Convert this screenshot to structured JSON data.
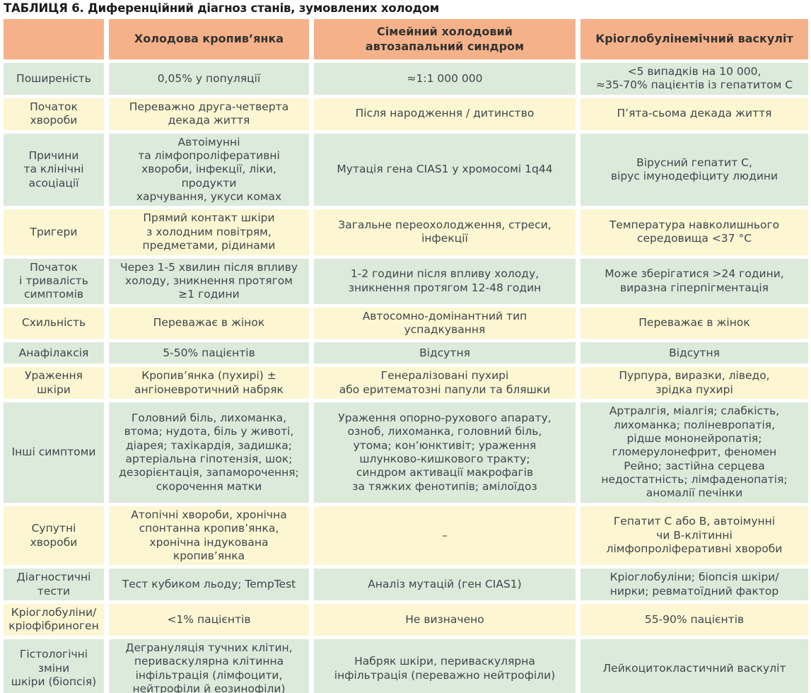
{
  "title": "ТАБЛИЦЯ 6. Диференційний діагноз станів, зумовлених холодом",
  "colors": {
    "page_bg": "#ffffff",
    "header_bg": "#f5b28a",
    "row_green": "#dceadb",
    "row_cream": "#fcf6d2",
    "header_text": "#333230",
    "body_text": "#3f464a",
    "title_text": "#1b1b1b"
  },
  "table": {
    "columns": [
      "Холодова кропив’янка",
      "Сімейний холодовий\nавтозапальний синдром",
      "Кріоглобулінемічний васкуліт"
    ],
    "rows": [
      {
        "label": "Поширеність",
        "cells": [
          "0,05% у популяції",
          "≈1:1 000 000",
          "<5 випадків на 10 000,\n≈35-70% пацієнтів із гепатитом С"
        ]
      },
      {
        "label": "Початок\nхвороби",
        "cells": [
          "Переважно друга-четверта\nдекада життя",
          "Після народження / дитинство",
          "П’ята-сьома декада життя"
        ]
      },
      {
        "label": "Причини\nта клінічні\nасоціації",
        "cells": [
          "Автоімунні\nта лімфопроліферативні\nхвороби, інфекції, ліки, продукти\nхарчування, укуси комах",
          "Мутація гена CIAS1 у хромосомі 1q44",
          "Вірусний гепатит С,\nвірус імунодефіциту людини"
        ]
      },
      {
        "label": "Тригери",
        "cells": [
          "Прямий контакт шкіри\nз холодним повітрям,\nпредметами, рідинами",
          "Загальне переохолодження, стреси,\nінфекції",
          "Температура навколишнього\nсередовища <37 °С"
        ]
      },
      {
        "label": "Початок\nі тривалість\nсимптомів",
        "cells": [
          "Через 1-5 хвилин після впливу\nхолоду, зникнення протягом\n≥1 години",
          "1-2 години після впливу холоду,\nзникнення протягом 12-48 годин",
          "Може зберігатися >24 години,\nвиразна гіперпігментація"
        ]
      },
      {
        "label": "Схильність",
        "cells": [
          "Переважає в жінок",
          "Автосомно-домінантний тип\nуспадкування",
          "Переважає в жінок"
        ]
      },
      {
        "label": "Анафілаксія",
        "cells": [
          "5-50% пацієнтів",
          "Відсутня",
          "Відсутня"
        ]
      },
      {
        "label": "Ураження\nшкіри",
        "cells": [
          "Кропив’янка (пухирі) ±\nангіоневротичний набряк",
          "Генералізовані пухирі\nабо еритематозні папули та бляшки",
          "Пурпура, виразки, ліведо,\nзрідка пухирі"
        ]
      },
      {
        "label": "Інші симптоми",
        "cells": [
          "Головний біль, лихоманка,\nвтома; нудота, біль у животі,\nдіарея; тахікардія, задишка;\nартеріальна гіпотензія, шок;\nдезорієнтація, запаморочення;\nскорочення матки",
          "Ураження опорно-рухового апарату,\nозноб, лихоманка, головний біль,\nутома; кон’юнктивіт; ураження\nшлунково-кишкового тракту;\nсиндром активації макрофагів\nза тяжких фенотипів; амілоїдоз",
          "Артралгія, міалгія; слабкість,\nлихоманка; поліневропатія,\nрідше мононейропатія;\nгломерулонефрит, феномен\nРейно; застійна серцева\nнедостатність; лімфаденопатія;\nаномалії печінки"
        ]
      },
      {
        "label": "Супутні\nхвороби",
        "cells": [
          "Атопічні хвороби, хронічна\nспонтанна кропив’янка,\nхронічна індукована кропив’янка",
          "–",
          "Гепатит С або В, автоімунні\nчи В-клітинні\nлімфопроліферативні хвороби"
        ]
      },
      {
        "label": "Діагностичні\nтести",
        "cells": [
          "Тест кубиком льоду; TempTest",
          "Аналіз мутацій (ген CIAS1)",
          "Кріоглобуліни; біопсія шкіри/\nнирки; ревматоїдний фактор"
        ]
      },
      {
        "label": "Кріоглобуліни/\nкріофібриноген",
        "cells": [
          "<1% пацієнтів",
          "Не визначено",
          "55-90% пацієнтів"
        ]
      },
      {
        "label": "Гістологічні\nзміни\nшкіри (біопсія)",
        "cells": [
          "Дегрануляція тучних клітин,\nпериваскулярна клітинна\nінфільтрація (лімфоцити,\nнейтрофіли й еозинофіли)",
          "Набряк шкіри, периваскулярна\nінфільтрація (переважно нейтрофіли)",
          "Лейкоцитокластичний васкуліт"
        ]
      }
    ]
  }
}
